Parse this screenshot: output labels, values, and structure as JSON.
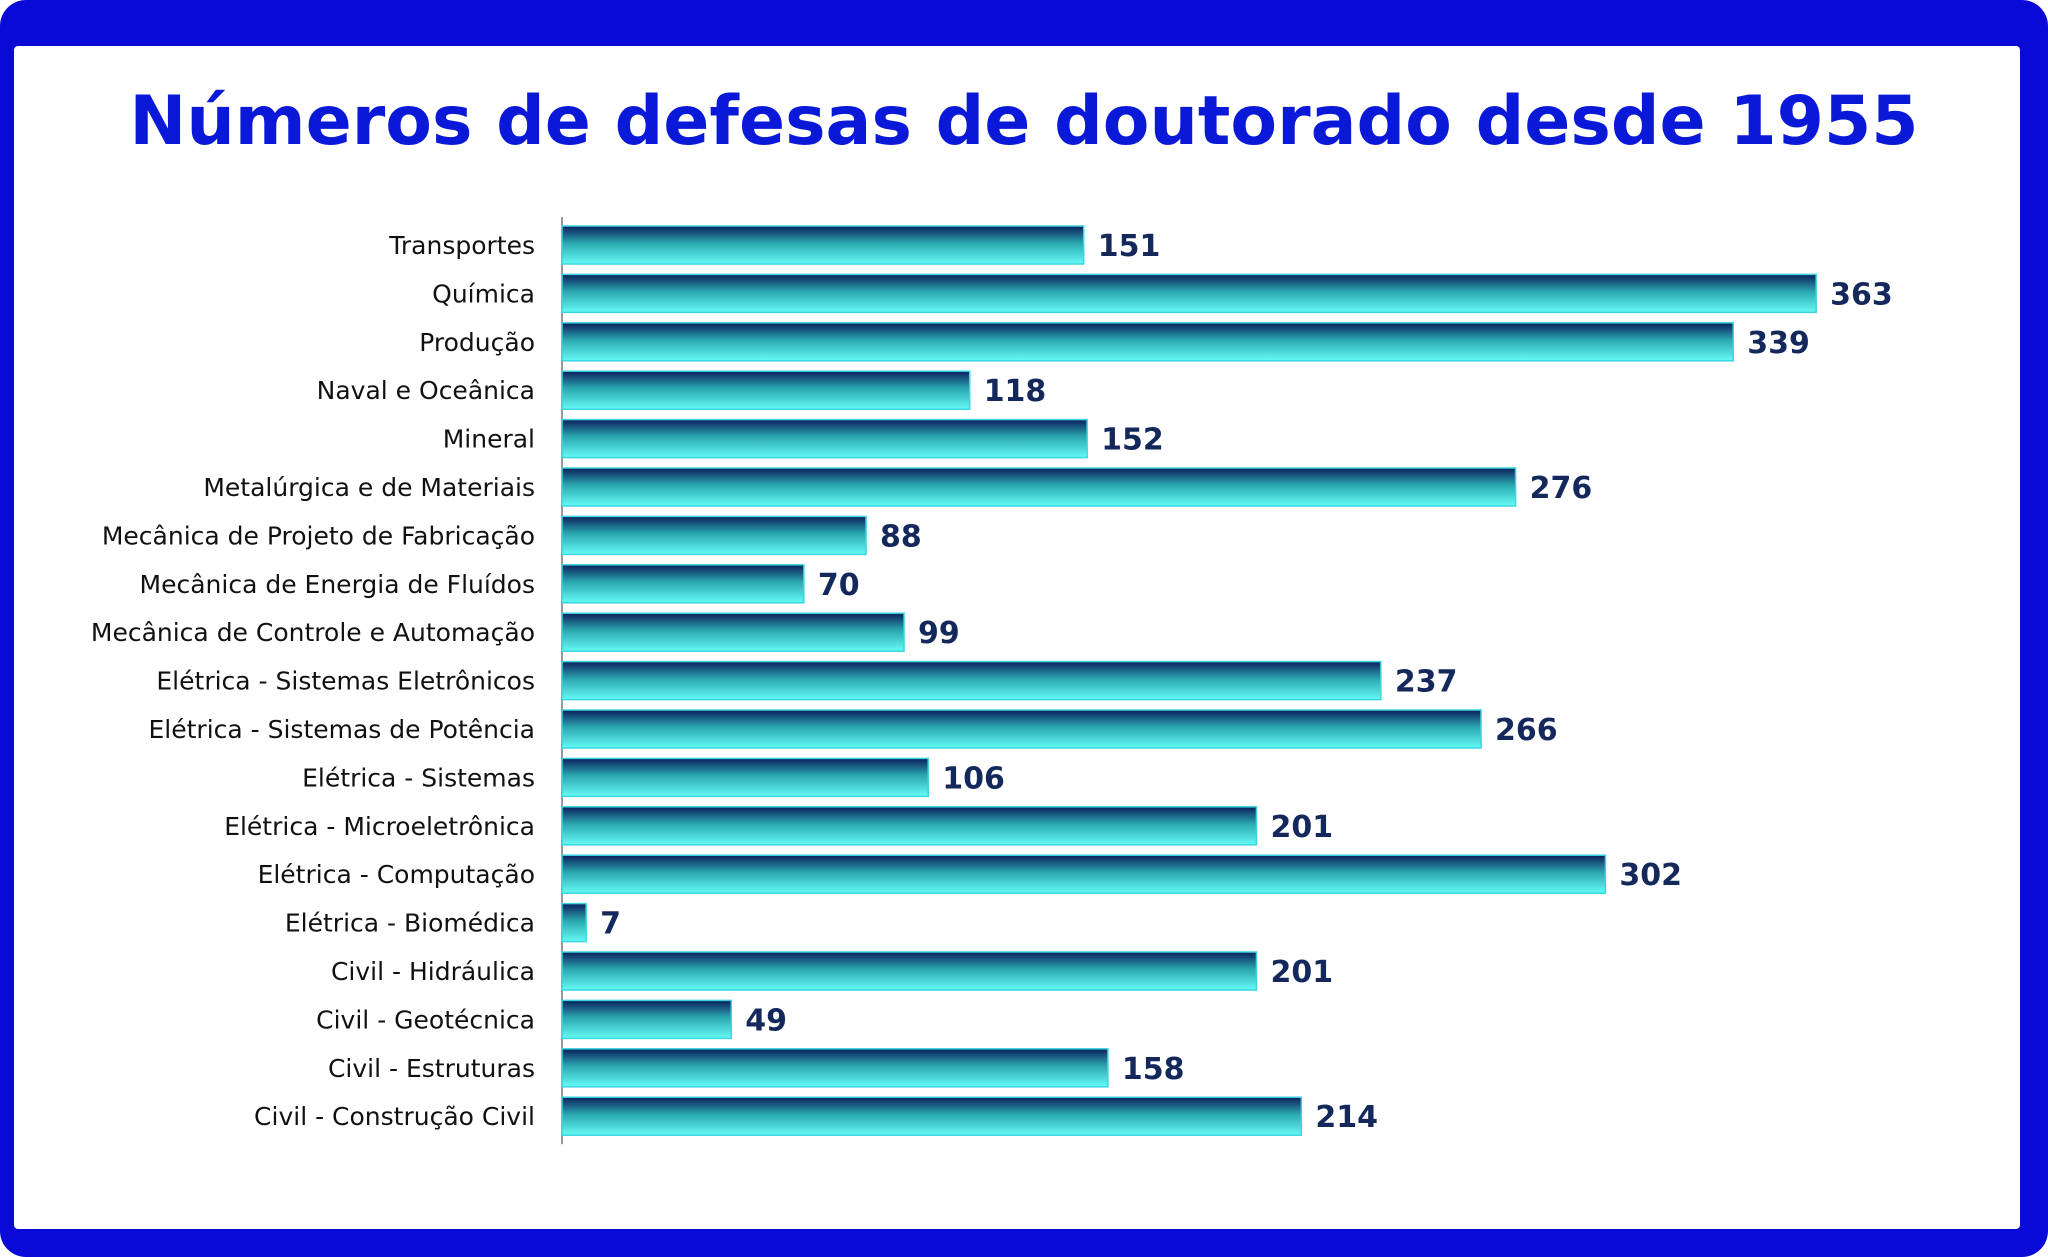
{
  "title": "Números de defesas de doutorado desde 1955",
  "colors": {
    "frame": "#0a0ad6",
    "title": "#0a18d8",
    "bar_top": "#0b1f5c",
    "bar_mid": "#2aa7b0",
    "bar_bottom": "#66fbf5",
    "value_label": "#14285c"
  },
  "chart_data": {
    "type": "bar",
    "orientation": "horizontal",
    "title": "Números de defesas de doutorado desde 1955",
    "xlabel": "",
    "ylabel": "",
    "grid": false,
    "legend": "none",
    "xlim": [
      0,
      363
    ],
    "categories": [
      "Transportes",
      "Química",
      "Produção",
      "Naval e Oceânica",
      "Mineral",
      "Metalúrgica e de Materiais",
      "Mecânica de Projeto de Fabricação",
      "Mecânica de Energia de Fluídos",
      "Mecânica de Controle e Automação",
      "Elétrica - Sistemas Eletrônicos",
      "Elétrica - Sistemas de Potência",
      "Elétrica - Sistemas",
      "Elétrica - Microeletrônica",
      "Elétrica - Computação",
      "Elétrica - Biomédica",
      "Civil - Hidráulica",
      "Civil - Geotécnica",
      "Civil - Estruturas",
      "Civil - Construção Civil"
    ],
    "values": [
      151,
      363,
      339,
      118,
      152,
      276,
      88,
      70,
      99,
      237,
      266,
      106,
      201,
      302,
      7,
      201,
      49,
      158,
      214
    ]
  }
}
